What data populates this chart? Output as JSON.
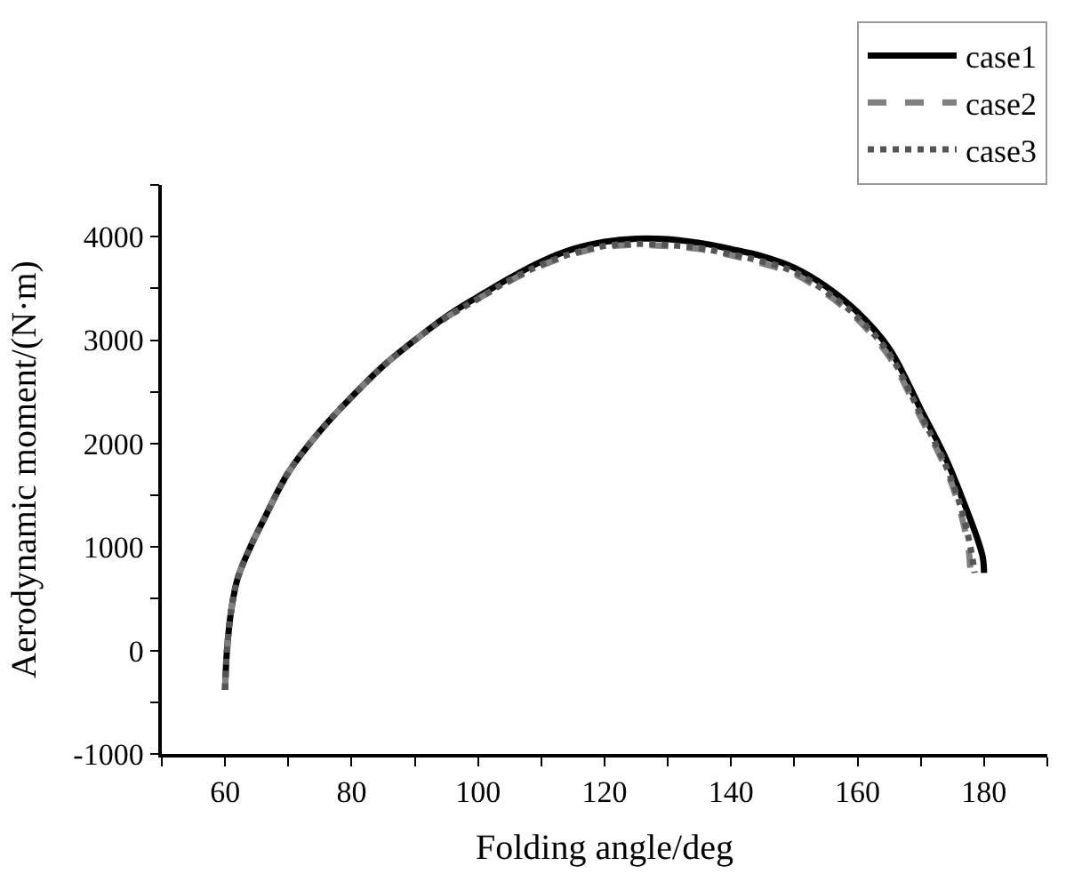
{
  "chart_data": {
    "type": "line",
    "xlabel": "Folding angle/deg",
    "ylabel": "Aerodynamic moment/(N·m)",
    "xlim": [
      50,
      190
    ],
    "ylim": [
      -1000,
      4500
    ],
    "xticks": [
      {
        "value": 50,
        "label": null
      },
      60,
      {
        "value": 70,
        "label": null
      },
      80,
      {
        "value": 90,
        "label": null
      },
      100,
      {
        "value": 110,
        "label": null
      },
      120,
      {
        "value": 130,
        "label": null
      },
      140,
      {
        "value": 150,
        "label": null
      },
      160,
      {
        "value": 170,
        "label": null
      },
      180,
      {
        "value": 190,
        "label": null
      }
    ],
    "yticks": [
      -1000,
      {
        "value": -500,
        "label": null
      },
      0,
      {
        "value": 500,
        "label": null
      },
      1000,
      {
        "value": 1500,
        "label": null
      },
      2000,
      {
        "value": 2500,
        "label": null
      },
      3000,
      {
        "value": 3500,
        "label": null
      },
      4000,
      {
        "value": 4500,
        "label": null
      }
    ],
    "legend": "top right",
    "marker": "none",
    "series": [
      {
        "name": "case1",
        "color": "#000000",
        "line_style": "solid",
        "x": [
          60,
          60.3,
          61,
          62,
          64,
          66,
          70,
          75,
          80,
          85,
          90,
          95,
          100,
          105,
          110,
          115,
          120,
          125,
          130,
          135,
          140,
          145,
          150,
          155,
          160,
          165,
          170,
          174,
          177,
          179,
          179.8,
          180
        ],
        "values": [
          -380,
          0,
          400,
          700,
          1000,
          1250,
          1720,
          2120,
          2450,
          2750,
          3000,
          3230,
          3420,
          3600,
          3760,
          3880,
          3950,
          3980,
          3975,
          3940,
          3880,
          3810,
          3700,
          3520,
          3270,
          2920,
          2330,
          1850,
          1400,
          1070,
          900,
          750
        ]
      },
      {
        "name": "case2",
        "color": "#808080",
        "line_style": "dashed",
        "x": [
          60,
          60.3,
          61,
          62,
          64,
          66,
          70,
          75,
          80,
          85,
          90,
          95,
          100,
          105,
          110,
          115,
          120,
          125,
          130,
          135,
          140,
          145,
          150,
          155,
          160,
          165,
          170,
          174,
          176,
          177.5,
          177.8
        ],
        "values": [
          -380,
          0,
          400,
          700,
          1000,
          1250,
          1720,
          2120,
          2450,
          2750,
          3000,
          3220,
          3400,
          3570,
          3720,
          3830,
          3900,
          3920,
          3910,
          3880,
          3820,
          3740,
          3640,
          3450,
          3200,
          2840,
          2250,
          1750,
          1400,
          1000,
          800
        ]
      },
      {
        "name": "case3",
        "color": "#555555",
        "line_style": "dotted",
        "x": [
          60,
          60.3,
          61,
          62,
          64,
          66,
          70,
          75,
          80,
          85,
          90,
          95,
          100,
          105,
          110,
          115,
          120,
          125,
          130,
          135,
          140,
          145,
          150,
          155,
          160,
          165,
          170,
          174,
          176.5,
          178,
          178.5
        ],
        "values": [
          -380,
          0,
          400,
          700,
          1000,
          1250,
          1720,
          2120,
          2450,
          2750,
          3000,
          3220,
          3400,
          3580,
          3730,
          3840,
          3910,
          3930,
          3920,
          3890,
          3830,
          3760,
          3660,
          3470,
          3220,
          2870,
          2280,
          1780,
          1350,
          950,
          750
        ]
      }
    ]
  }
}
